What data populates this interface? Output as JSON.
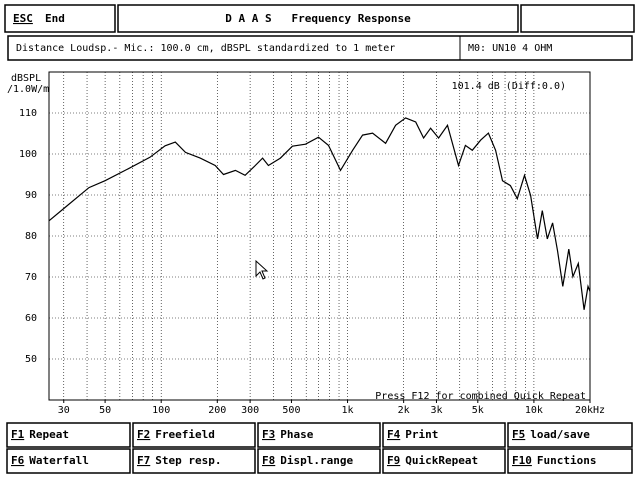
{
  "header": {
    "key": "ESC",
    "label": "End",
    "title": "D A A S   Frequency Response"
  },
  "info": {
    "text": "Distance Loudsp.- Mic.: 100.0 cm, dBSPL standardized to 1 meter",
    "mode": "M0: UN10 4 OHM"
  },
  "chart_data": {
    "type": "line",
    "ylabel": "dBSPL",
    "ylabel_unit": "/1.0W/m",
    "annotations": [
      "101.4 dB (Diff:0.0)",
      "Press F12 for combined Quick Repeat"
    ],
    "x": [
      25,
      30,
      41,
      50,
      64,
      87,
      105,
      119,
      135,
      162,
      195,
      216,
      250,
      282,
      320,
      350,
      376,
      436,
      506,
      595,
      698,
      790,
      917,
      1064,
      1204,
      1362,
      1600,
      1810,
      2050,
      2320,
      2560,
      2790,
      3080,
      3440,
      3940,
      4290,
      4670,
      5180,
      5700,
      6230,
      6780,
      7480,
      8150,
      8900,
      9600,
      10450,
      11100,
      11800,
      12600,
      13400,
      14300,
      15400,
      16200,
      17300,
      18600,
      19500,
      20000
    ],
    "series": [
      {
        "color": "#000000",
        "values": [
          83.7,
          86.7,
          91.8,
          93.5,
          96,
          99.2,
          102,
          102.9,
          100.4,
          99,
          97.2,
          95,
          96,
          94.8,
          97.2,
          99,
          97.2,
          99,
          101.9,
          102.4,
          104.1,
          102.1,
          96,
          100.9,
          104.6,
          105.1,
          102.6,
          107,
          108.8,
          107.8,
          103.9,
          106.3,
          103.9,
          107,
          97.2,
          102.1,
          100.9,
          103.4,
          105.1,
          100.9,
          93.5,
          92.3,
          89.1,
          94.8,
          89.9,
          79.3,
          86.2,
          79.3,
          83.2,
          76.3,
          67.7,
          76.8,
          70.1,
          73.3,
          62,
          67.7,
          66.5
        ]
      }
    ],
    "xlog": true,
    "xlim": [
      25,
      20000
    ],
    "xticks": [
      30,
      50,
      100,
      200,
      300,
      500,
      {
        "value": 1000,
        "label": "1k"
      },
      {
        "value": 2000,
        "label": "2k"
      },
      {
        "value": 3000,
        "label": "3k"
      },
      {
        "value": 5000,
        "label": "5k"
      },
      {
        "value": 10000,
        "label": "10k"
      },
      {
        "value": 20000,
        "label": "20kHz"
      }
    ],
    "xgrid": [
      30,
      40,
      50,
      60,
      70,
      80,
      90,
      100,
      200,
      300,
      400,
      500,
      600,
      700,
      800,
      900,
      1000,
      2000,
      3000,
      4000,
      5000,
      6000,
      7000,
      8000,
      9000,
      10000,
      20000
    ],
    "ylim": [
      40,
      120
    ],
    "yticks": [
      50,
      60,
      70,
      80,
      90,
      100,
      110
    ],
    "grid": true
  },
  "function_keys": [
    {
      "key": "F1",
      "label": "Repeat"
    },
    {
      "key": "F2",
      "label": "Freefield"
    },
    {
      "key": "F3",
      "label": "Phase"
    },
    {
      "key": "F4",
      "label": "Print"
    },
    {
      "key": "F5",
      "label": "load/save"
    },
    {
      "key": "F6",
      "label": "Waterfall"
    },
    {
      "key": "F7",
      "label": "Step resp."
    },
    {
      "key": "F8",
      "label": "Displ.range"
    },
    {
      "key": "F9",
      "label": "QuickRepeat"
    },
    {
      "key": "F10",
      "label": "Functions"
    }
  ]
}
